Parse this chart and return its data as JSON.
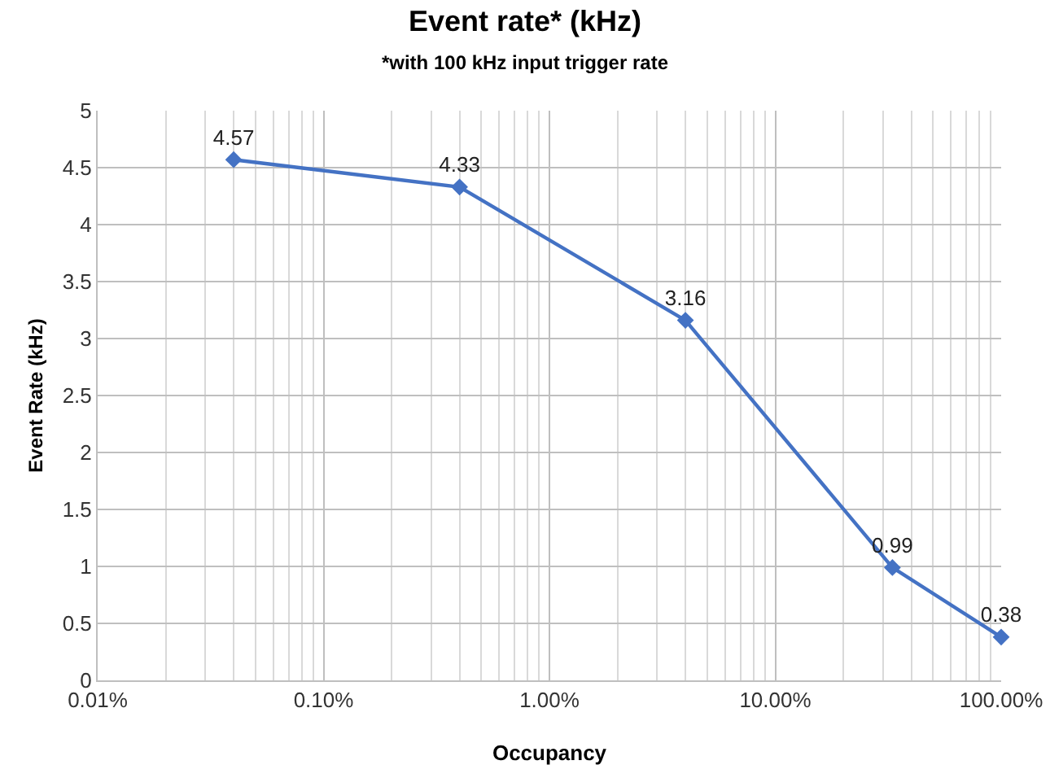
{
  "chart_data": {
    "type": "line",
    "title": "Event rate* (kHz)",
    "subtitle": "*with 100 kHz input trigger rate",
    "xlabel": "Occupancy",
    "ylabel": "Event Rate (kHz)",
    "x": [
      0.04,
      0.4,
      4,
      33,
      100
    ],
    "series": [
      {
        "color": "#4472c4",
        "values": [
          4.57,
          4.33,
          3.16,
          0.99,
          0.38
        ]
      }
    ],
    "log": "x",
    "xlim": [
      0.01,
      100
    ],
    "xticks": [
      {
        "value": 0.01,
        "label": "0.01%"
      },
      {
        "value": 0.1,
        "label": "0.10%"
      },
      {
        "value": 1,
        "label": "1.00%"
      },
      {
        "value": 10,
        "label": "10.00%"
      },
      {
        "value": 100,
        "label": "100.00%"
      }
    ],
    "ylim": [
      0,
      5
    ],
    "yticks": [
      0,
      0.5,
      1,
      1.5,
      2,
      2.5,
      3,
      3.5,
      4,
      4.5,
      5
    ],
    "grid": true,
    "marker": "diamond",
    "line_style": "solid",
    "data_labels": true
  }
}
